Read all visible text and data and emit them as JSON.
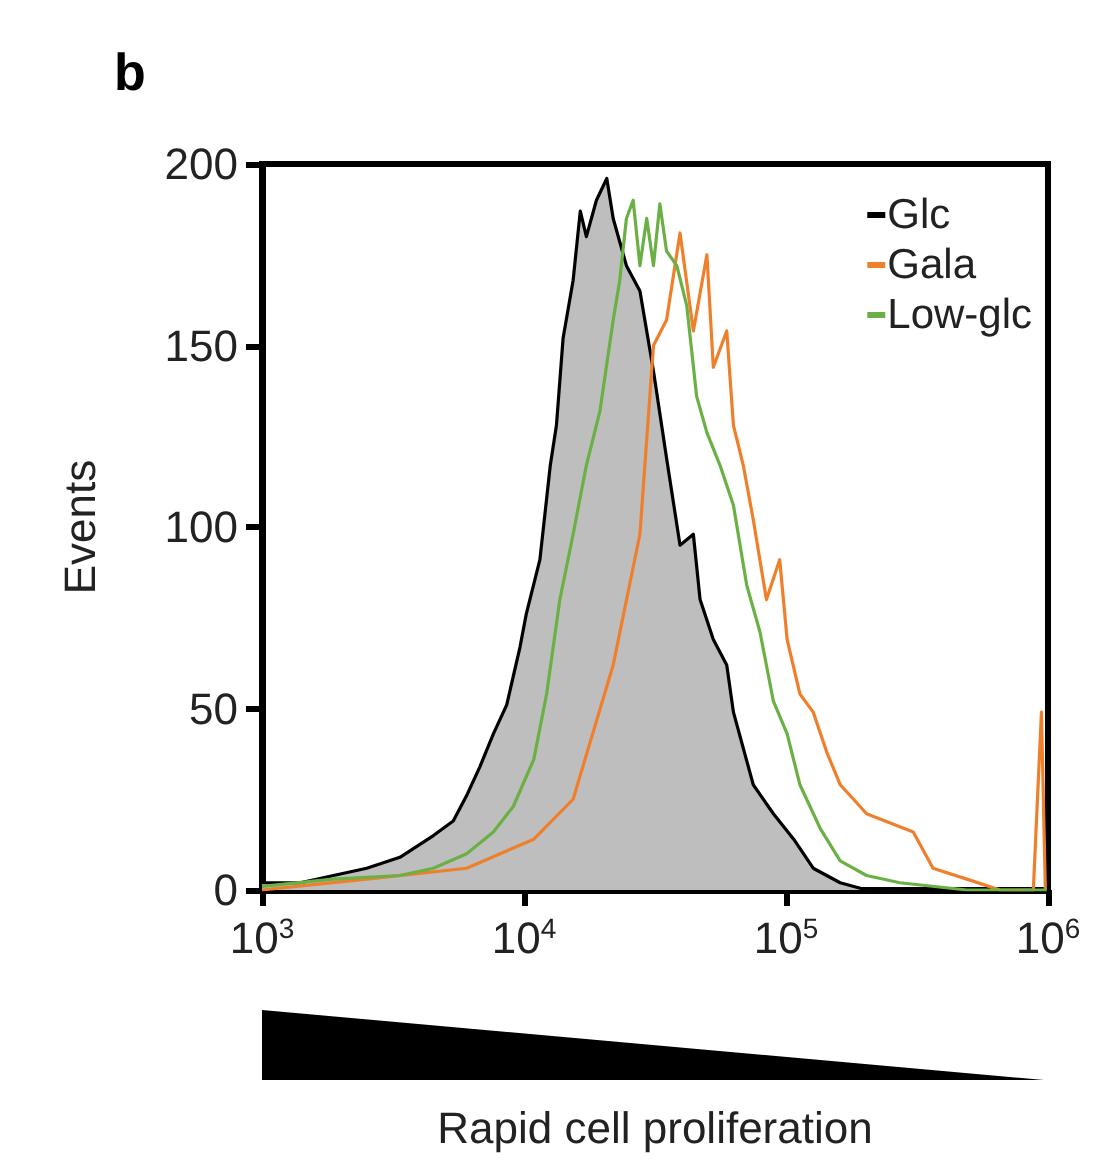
{
  "chart_data": {
    "type": "line",
    "title": "b",
    "xlabel": "Rapid cell proliferation",
    "ylabel": "Events",
    "log": "x",
    "xlim": [
      1000,
      1000000
    ],
    "xticks": [
      {
        "value": 1000,
        "label": "10$^{3}$"
      },
      {
        "value": 10000,
        "label": "10$^{4}$"
      },
      {
        "value": 100000,
        "label": "10$^{5}$"
      },
      {
        "value": 1000000,
        "label": "10$^{6}$"
      }
    ],
    "ylim": [
      0,
      200
    ],
    "yticks": [
      0,
      50,
      100,
      150,
      200
    ],
    "grid": false,
    "legend": "top right",
    "marker": "none",
    "line_style": "solid",
    "series": [
      {
        "name": "Glc",
        "type": "area",
        "color": "#000000",
        "x": [
          1000,
          1400,
          2510,
          3360,
          4510,
          5370,
          6040,
          6790,
          7640,
          8590,
          9660,
          10200,
          11500,
          12600,
          13300,
          14100,
          15400,
          16400,
          17300,
          18900,
          20700,
          21900,
          24600,
          27700,
          31200,
          35000,
          39400,
          44300,
          47000,
          52800,
          59400,
          63000,
          75000,
          89500,
          107000,
          127000,
          161000,
          203000,
          364000,
          988000
        ],
        "values": [
          2,
          2,
          6,
          9,
          15,
          19,
          26,
          34,
          43,
          51,
          67,
          76,
          91,
          117,
          128,
          152,
          168,
          187,
          180,
          190,
          196,
          185,
          172,
          165,
          143,
          119,
          95,
          98,
          80,
          69,
          62,
          49,
          29,
          21,
          14,
          6,
          2,
          0,
          0,
          0
        ]
      },
      {
        "name": "Gala",
        "color": "#f07f2c",
        "x": [
          1000,
          2510,
          6040,
          10900,
          15400,
          21900,
          27700,
          31200,
          35000,
          39400,
          44300,
          49900,
          52800,
          59400,
          63000,
          68700,
          75000,
          84200,
          94600,
          101000,
          113000,
          127000,
          143000,
          161000,
          181000,
          203000,
          306000,
          364000,
          490000,
          656000,
          879000,
          944000,
          977000
        ],
        "values": [
          0,
          3,
          6,
          14,
          25,
          62,
          98,
          150,
          157,
          181,
          154,
          175,
          144,
          154,
          128,
          117,
          102,
          80,
          91,
          69,
          54,
          49,
          38,
          29,
          25,
          21,
          16,
          6,
          3,
          0,
          0,
          49,
          0
        ]
      },
      {
        "name": "Low-glc",
        "color": "#6ab044",
        "x": [
          1000,
          1870,
          3360,
          4510,
          6040,
          7640,
          9100,
          10900,
          12200,
          13700,
          15400,
          17300,
          19500,
          21900,
          23200,
          24600,
          26100,
          27700,
          29400,
          31200,
          33000,
          35000,
          38300,
          41800,
          45600,
          49900,
          56000,
          63000,
          70800,
          79600,
          89500,
          101000,
          113000,
          135000,
          161000,
          203000,
          272000,
          490000,
          988000
        ],
        "values": [
          1,
          3,
          4,
          6,
          10,
          16,
          23,
          36,
          54,
          80,
          98,
          117,
          132,
          157,
          168,
          185,
          190,
          172,
          185,
          172,
          189,
          176,
          172,
          161,
          136,
          126,
          117,
          106,
          84,
          71,
          52,
          43,
          29,
          17,
          8,
          4,
          2,
          0,
          0
        ]
      }
    ]
  }
}
